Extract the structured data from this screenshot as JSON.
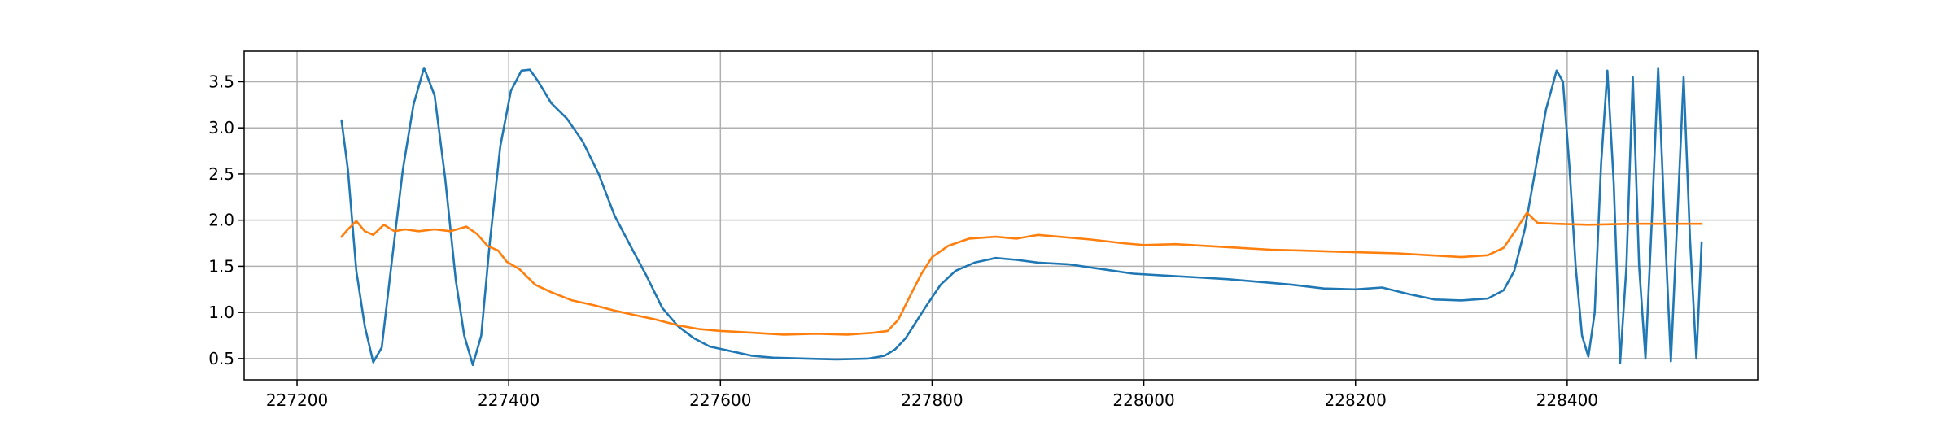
{
  "chart_data": {
    "type": "line",
    "title": "",
    "xlabel": "",
    "ylabel": "",
    "xlim": [
      227150,
      228580
    ],
    "ylim": [
      0.27,
      3.83
    ],
    "grid": true,
    "x_ticks": [
      227200,
      227400,
      227600,
      227800,
      228000,
      228200,
      228400
    ],
    "y_ticks": [
      0.5,
      1.0,
      1.5,
      2.0,
      2.5,
      3.0,
      3.5
    ],
    "x_tick_labels": [
      "227200",
      "227400",
      "227600",
      "227800",
      "228000",
      "228200",
      "228400"
    ],
    "y_tick_labels": [
      "0.5",
      "1.0",
      "1.5",
      "2.0",
      "2.5",
      "3.0",
      "3.5"
    ],
    "series": [
      {
        "color": "#1f77b4",
        "points": [
          [
            227242,
            3.08
          ],
          [
            227248,
            2.55
          ],
          [
            227256,
            1.45
          ],
          [
            227264,
            0.85
          ],
          [
            227272,
            0.46
          ],
          [
            227280,
            0.62
          ],
          [
            227290,
            1.6
          ],
          [
            227300,
            2.55
          ],
          [
            227310,
            3.25
          ],
          [
            227320,
            3.65
          ],
          [
            227330,
            3.35
          ],
          [
            227340,
            2.45
          ],
          [
            227350,
            1.35
          ],
          [
            227358,
            0.75
          ],
          [
            227366,
            0.43
          ],
          [
            227374,
            0.75
          ],
          [
            227382,
            1.75
          ],
          [
            227392,
            2.8
          ],
          [
            227402,
            3.4
          ],
          [
            227412,
            3.62
          ],
          [
            227420,
            3.63
          ],
          [
            227428,
            3.5
          ],
          [
            227440,
            3.27
          ],
          [
            227455,
            3.1
          ],
          [
            227470,
            2.85
          ],
          [
            227485,
            2.5
          ],
          [
            227500,
            2.05
          ],
          [
            227515,
            1.72
          ],
          [
            227530,
            1.4
          ],
          [
            227545,
            1.05
          ],
          [
            227560,
            0.85
          ],
          [
            227575,
            0.72
          ],
          [
            227590,
            0.63
          ],
          [
            227610,
            0.58
          ],
          [
            227630,
            0.53
          ],
          [
            227650,
            0.51
          ],
          [
            227680,
            0.5
          ],
          [
            227710,
            0.49
          ],
          [
            227740,
            0.5
          ],
          [
            227755,
            0.53
          ],
          [
            227765,
            0.6
          ],
          [
            227775,
            0.72
          ],
          [
            227785,
            0.9
          ],
          [
            227795,
            1.08
          ],
          [
            227808,
            1.3
          ],
          [
            227822,
            1.45
          ],
          [
            227840,
            1.54
          ],
          [
            227860,
            1.59
          ],
          [
            227880,
            1.57
          ],
          [
            227900,
            1.54
          ],
          [
            227930,
            1.52
          ],
          [
            227960,
            1.47
          ],
          [
            227990,
            1.42
          ],
          [
            228020,
            1.4
          ],
          [
            228050,
            1.38
          ],
          [
            228080,
            1.36
          ],
          [
            228110,
            1.33
          ],
          [
            228140,
            1.3
          ],
          [
            228170,
            1.26
          ],
          [
            228200,
            1.25
          ],
          [
            228225,
            1.27
          ],
          [
            228250,
            1.2
          ],
          [
            228275,
            1.14
          ],
          [
            228300,
            1.13
          ],
          [
            228325,
            1.15
          ],
          [
            228340,
            1.24
          ],
          [
            228350,
            1.45
          ],
          [
            228360,
            1.9
          ],
          [
            228370,
            2.55
          ],
          [
            228380,
            3.2
          ],
          [
            228390,
            3.62
          ],
          [
            228396,
            3.5
          ],
          [
            228402,
            2.6
          ],
          [
            228408,
            1.5
          ],
          [
            228414,
            0.75
          ],
          [
            228420,
            0.52
          ],
          [
            228426,
            1.0
          ],
          [
            228432,
            2.6
          ],
          [
            228438,
            3.62
          ],
          [
            228444,
            2.4
          ],
          [
            228450,
            0.45
          ],
          [
            228456,
            1.5
          ],
          [
            228462,
            3.55
          ],
          [
            228468,
            1.5
          ],
          [
            228474,
            0.5
          ],
          [
            228480,
            2.0
          ],
          [
            228486,
            3.65
          ],
          [
            228492,
            2.0
          ],
          [
            228498,
            0.47
          ],
          [
            228504,
            2.0
          ],
          [
            228510,
            3.55
          ],
          [
            228516,
            1.8
          ],
          [
            228522,
            0.5
          ],
          [
            228527,
            1.76
          ]
        ]
      },
      {
        "color": "#ff7f0e",
        "points": [
          [
            227242,
            1.82
          ],
          [
            227248,
            1.9
          ],
          [
            227256,
            1.99
          ],
          [
            227264,
            1.88
          ],
          [
            227272,
            1.84
          ],
          [
            227282,
            1.95
          ],
          [
            227292,
            1.88
          ],
          [
            227302,
            1.9
          ],
          [
            227315,
            1.88
          ],
          [
            227330,
            1.9
          ],
          [
            227345,
            1.88
          ],
          [
            227360,
            1.93
          ],
          [
            227370,
            1.85
          ],
          [
            227380,
            1.72
          ],
          [
            227390,
            1.67
          ],
          [
            227398,
            1.55
          ],
          [
            227410,
            1.47
          ],
          [
            227425,
            1.3
          ],
          [
            227440,
            1.22
          ],
          [
            227460,
            1.13
          ],
          [
            227480,
            1.08
          ],
          [
            227500,
            1.02
          ],
          [
            227520,
            0.97
          ],
          [
            227540,
            0.92
          ],
          [
            227560,
            0.86
          ],
          [
            227580,
            0.82
          ],
          [
            227600,
            0.8
          ],
          [
            227630,
            0.78
          ],
          [
            227660,
            0.76
          ],
          [
            227690,
            0.77
          ],
          [
            227720,
            0.76
          ],
          [
            227745,
            0.78
          ],
          [
            227758,
            0.8
          ],
          [
            227768,
            0.92
          ],
          [
            227778,
            1.15
          ],
          [
            227790,
            1.42
          ],
          [
            227800,
            1.6
          ],
          [
            227815,
            1.72
          ],
          [
            227835,
            1.8
          ],
          [
            227860,
            1.82
          ],
          [
            227880,
            1.8
          ],
          [
            227900,
            1.84
          ],
          [
            227920,
            1.82
          ],
          [
            227950,
            1.79
          ],
          [
            227980,
            1.75
          ],
          [
            228000,
            1.73
          ],
          [
            228030,
            1.74
          ],
          [
            228060,
            1.72
          ],
          [
            228090,
            1.7
          ],
          [
            228120,
            1.68
          ],
          [
            228150,
            1.67
          ],
          [
            228180,
            1.66
          ],
          [
            228210,
            1.65
          ],
          [
            228240,
            1.64
          ],
          [
            228270,
            1.62
          ],
          [
            228300,
            1.6
          ],
          [
            228325,
            1.62
          ],
          [
            228340,
            1.7
          ],
          [
            228352,
            1.9
          ],
          [
            228362,
            2.08
          ],
          [
            228372,
            1.97
          ],
          [
            228390,
            1.96
          ],
          [
            228420,
            1.95
          ],
          [
            228460,
            1.96
          ],
          [
            228500,
            1.96
          ],
          [
            228527,
            1.96
          ]
        ]
      }
    ]
  }
}
